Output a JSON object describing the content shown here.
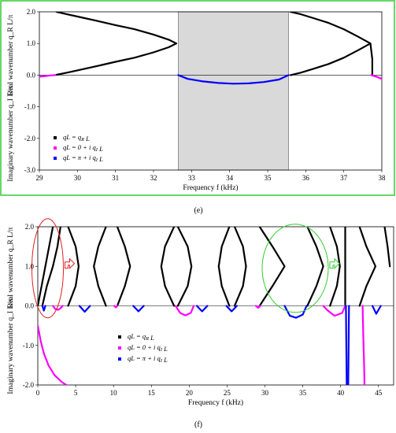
{
  "chart_data": [
    {
      "type": "scatter",
      "panel_label": "(e)",
      "xlabel": "Frequency  f (kHz)",
      "ylabel_upper": "Real wavenumber  q_R L/π",
      "ylabel_lower": "Imaginary wavenumber  q_I L/π",
      "xlim": [
        29,
        38
      ],
      "ylim": [
        -3.0,
        2.0
      ],
      "xticks": [
        "29",
        "30",
        "31",
        "32",
        "33",
        "34",
        "35",
        "36",
        "37",
        "38"
      ],
      "yticks": [
        "2.0",
        "1.0",
        "0.0",
        "-1.0",
        "-2.0",
        "-3.0"
      ],
      "bandgap": [
        32.65,
        35.55
      ],
      "frame_color": "#33cc33",
      "legend": [
        "qL = q_R L",
        "qL = 0 + i q_I L",
        "qL = π + i q_I L"
      ],
      "series": [
        {
          "color": "#000000",
          "points": [
            [
              29.45,
              2.0
            ],
            [
              29.7,
              1.93
            ],
            [
              30.0,
              1.85
            ],
            [
              30.5,
              1.72
            ],
            [
              31.0,
              1.58
            ],
            [
              31.5,
              1.45
            ],
            [
              32.0,
              1.28
            ],
            [
              32.4,
              1.12
            ],
            [
              32.6,
              1.0
            ],
            [
              32.4,
              0.88
            ],
            [
              32.0,
              0.72
            ],
            [
              31.5,
              0.55
            ],
            [
              31.0,
              0.42
            ],
            [
              30.5,
              0.28
            ],
            [
              30.0,
              0.15
            ],
            [
              29.7,
              0.07
            ],
            [
              29.45,
              0.01
            ]
          ]
        },
        {
          "color": "#000000",
          "points": [
            [
              35.6,
              2.0
            ],
            [
              35.85,
              1.93
            ],
            [
              36.2,
              1.8
            ],
            [
              36.6,
              1.65
            ],
            [
              37.0,
              1.45
            ],
            [
              37.4,
              1.2
            ],
            [
              37.7,
              1.0
            ],
            [
              37.75,
              0.5
            ],
            [
              37.75,
              0.0
            ]
          ]
        },
        {
          "color": "#000000",
          "points": [
            [
              35.6,
              0.0
            ],
            [
              35.85,
              0.07
            ],
            [
              36.2,
              0.2
            ],
            [
              36.6,
              0.35
            ],
            [
              37.0,
              0.55
            ],
            [
              37.4,
              0.8
            ],
            [
              37.7,
              1.0
            ]
          ]
        },
        {
          "color": "#ff00ff",
          "points": [
            [
              29.0,
              -0.05
            ],
            [
              29.15,
              -0.03
            ],
            [
              29.3,
              -0.01
            ],
            [
              29.42,
              0.0
            ]
          ]
        },
        {
          "color": "#ff00ff",
          "points": [
            [
              37.72,
              0.0
            ],
            [
              37.8,
              -0.03
            ],
            [
              37.9,
              -0.07
            ],
            [
              38.0,
              -0.12
            ]
          ]
        },
        {
          "color": "#0000ff",
          "points": [
            [
              32.65,
              0.0
            ],
            [
              32.9,
              -0.12
            ],
            [
              33.3,
              -0.2
            ],
            [
              33.7,
              -0.25
            ],
            [
              34.1,
              -0.27
            ],
            [
              34.5,
              -0.26
            ],
            [
              34.9,
              -0.22
            ],
            [
              35.3,
              -0.14
            ],
            [
              35.55,
              0.0
            ]
          ]
        }
      ]
    },
    {
      "type": "scatter",
      "panel_label": "(f)",
      "xlabel": "Frequency  f (kHz)",
      "ylabel_upper": "Real wavenumber  q_R L/π",
      "ylabel_lower": "Imaginary wavenumber  q_I L/π",
      "xlim": [
        0,
        47
      ],
      "ylim": [
        -2.0,
        2.0
      ],
      "xticks": [
        "0",
        "5",
        "10",
        "15",
        "20",
        "25",
        "30",
        "35",
        "40",
        "45"
      ],
      "yticks": [
        "2.0",
        "1.0",
        "0.0",
        "-1.0",
        "-2.0"
      ],
      "legend": [
        "qL = q_R L",
        "qL = 0 + i q_I L",
        "qL = π + i q_I L"
      ],
      "annotations": {
        "red_ellipse_center": [
          1.3,
          0.95
        ],
        "green_ellipse_center": [
          34.0,
          0.95
        ]
      },
      "series": [
        {
          "color": "#000000",
          "points": [
            [
              0.0,
              0.0
            ],
            [
              0.5,
              0.5
            ],
            [
              1.0,
              1.0
            ],
            [
              1.5,
              1.5
            ],
            [
              2.0,
              2.0
            ]
          ]
        },
        {
          "color": "#000000",
          "points": [
            [
              0.6,
              0.0
            ],
            [
              1.2,
              0.5
            ],
            [
              2.0,
              1.0
            ],
            [
              2.6,
              1.5
            ],
            [
              3.0,
              2.0
            ]
          ]
        },
        {
          "color": "#000000",
          "points": [
            [
              4.0,
              2.0
            ],
            [
              5.0,
              1.5
            ],
            [
              5.4,
              1.0
            ],
            [
              5.0,
              0.5
            ],
            [
              4.0,
              0.0
            ]
          ]
        },
        {
          "color": "#000000",
          "points": [
            [
              9.0,
              2.0
            ],
            [
              8.0,
              1.5
            ],
            [
              7.4,
              1.0
            ],
            [
              8.0,
              0.5
            ],
            [
              9.0,
              0.0
            ]
          ]
        },
        {
          "color": "#000000",
          "points": [
            [
              10.5,
              0.0
            ],
            [
              11.5,
              0.5
            ],
            [
              12.2,
              1.0
            ],
            [
              11.5,
              1.5
            ],
            [
              10.5,
              2.0
            ]
          ]
        },
        {
          "color": "#000000",
          "points": [
            [
              18.0,
              2.0
            ],
            [
              16.8,
              1.5
            ],
            [
              16.3,
              1.0
            ],
            [
              16.8,
              0.5
            ],
            [
              18.0,
              0.0
            ]
          ]
        },
        {
          "color": "#000000",
          "points": [
            [
              18.5,
              2.0
            ],
            [
              19.8,
              1.5
            ],
            [
              20.3,
              1.0
            ],
            [
              19.8,
              0.5
            ],
            [
              18.5,
              0.0
            ]
          ]
        },
        {
          "color": "#000000",
          "points": [
            [
              25.3,
              2.0
            ],
            [
              24.3,
              1.5
            ],
            [
              23.9,
              1.0
            ],
            [
              24.3,
              0.5
            ],
            [
              25.3,
              0.0
            ]
          ]
        },
        {
          "color": "#000000",
          "points": [
            [
              26.0,
              2.0
            ],
            [
              27.1,
              1.5
            ],
            [
              27.5,
              1.0
            ],
            [
              27.1,
              0.5
            ],
            [
              26.0,
              0.0
            ]
          ]
        },
        {
          "color": "#000000",
          "points": [
            [
              29.3,
              2.0
            ],
            [
              31.0,
              1.5
            ],
            [
              32.6,
              1.0
            ],
            [
              31.0,
              0.5
            ],
            [
              29.3,
              0.0
            ]
          ]
        },
        {
          "color": "#000000",
          "points": [
            [
              35.6,
              2.0
            ],
            [
              36.8,
              1.5
            ],
            [
              37.7,
              1.0
            ],
            [
              36.8,
              0.5
            ],
            [
              35.6,
              0.0
            ]
          ]
        },
        {
          "color": "#000000",
          "points": [
            [
              38.6,
              2.0
            ],
            [
              39.5,
              1.5
            ],
            [
              39.9,
              1.0
            ],
            [
              39.5,
              0.5
            ],
            [
              38.6,
              0.0
            ]
          ]
        },
        {
          "color": "#000000",
          "points": [
            [
              40.6,
              2.0
            ],
            [
              40.6,
              0.0
            ]
          ]
        },
        {
          "color": "#000000",
          "points": [
            [
              42.5,
              2.0
            ],
            [
              43.4,
              1.5
            ],
            [
              44.6,
              1.0
            ],
            [
              43.4,
              0.5
            ],
            [
              42.5,
              0.0
            ]
          ]
        },
        {
          "color": "#000000",
          "points": [
            [
              45.8,
              2.0
            ],
            [
              46.2,
              1.5
            ],
            [
              46.5,
              1.0
            ]
          ]
        },
        {
          "color": "#ff00ff",
          "points": [
            [
              0.0,
              -0.5
            ],
            [
              0.4,
              -0.9
            ],
            [
              0.8,
              -1.2
            ],
            [
              1.4,
              -1.5
            ],
            [
              2.2,
              -1.75
            ],
            [
              3.2,
              -1.93
            ],
            [
              3.8,
              -2.0
            ]
          ]
        },
        {
          "color": "#ff00ff",
          "points": [
            [
              2.0,
              0.0
            ],
            [
              2.3,
              -0.08
            ],
            [
              2.7,
              -0.1
            ],
            [
              3.0,
              -0.06
            ],
            [
              3.3,
              0.0
            ]
          ]
        },
        {
          "color": "#ff00ff",
          "points": [
            [
              10.1,
              0.0
            ],
            [
              10.3,
              -0.04
            ],
            [
              10.5,
              0.0
            ]
          ]
        },
        {
          "color": "#ff00ff",
          "points": [
            [
              18.2,
              0.0
            ],
            [
              18.8,
              -0.18
            ],
            [
              19.5,
              -0.24
            ],
            [
              20.2,
              -0.18
            ],
            [
              20.6,
              0.0
            ]
          ]
        },
        {
          "color": "#ff00ff",
          "points": [
            [
              28.8,
              0.0
            ],
            [
              29.1,
              -0.05
            ],
            [
              29.4,
              0.0
            ]
          ]
        },
        {
          "color": "#ff00ff",
          "points": [
            [
              37.7,
              0.0
            ],
            [
              38.3,
              -0.12
            ],
            [
              39.2,
              -0.25
            ],
            [
              40.2,
              -0.18
            ],
            [
              40.6,
              0.0
            ]
          ]
        },
        {
          "color": "#ff00ff",
          "points": [
            [
              42.9,
              0.0
            ],
            [
              43.0,
              -0.8
            ],
            [
              43.1,
              -1.5
            ],
            [
              43.15,
              -2.0
            ]
          ]
        },
        {
          "color": "#0000ff",
          "points": [
            [
              0.6,
              0.0
            ],
            [
              0.8,
              -0.12
            ],
            [
              1.0,
              0.0
            ]
          ]
        },
        {
          "color": "#0000ff",
          "points": [
            [
              5.5,
              0.0
            ],
            [
              6.2,
              -0.15
            ],
            [
              6.9,
              0.0
            ]
          ]
        },
        {
          "color": "#0000ff",
          "points": [
            [
              12.6,
              0.0
            ],
            [
              13.3,
              -0.14
            ],
            [
              14.0,
              0.0
            ]
          ]
        },
        {
          "color": "#0000ff",
          "points": [
            [
              21.0,
              0.0
            ],
            [
              21.7,
              -0.14
            ],
            [
              22.4,
              0.0
            ]
          ]
        },
        {
          "color": "#0000ff",
          "points": [
            [
              24.9,
              0.0
            ],
            [
              25.6,
              -0.14
            ],
            [
              26.3,
              0.0
            ]
          ]
        },
        {
          "color": "#0000ff",
          "points": [
            [
              32.6,
              0.0
            ],
            [
              33.3,
              -0.25
            ],
            [
              34.1,
              -0.3
            ],
            [
              35.0,
              -0.22
            ],
            [
              35.5,
              0.0
            ]
          ]
        },
        {
          "color": "#0000ff",
          "points": [
            [
              40.7,
              0.0
            ],
            [
              40.75,
              -1.0
            ],
            [
              40.8,
              -2.0
            ]
          ]
        },
        {
          "color": "#0000ff",
          "points": [
            [
              41.0,
              -2.0
            ],
            [
              41.05,
              -1.0
            ],
            [
              41.1,
              0.0
            ]
          ]
        },
        {
          "color": "#0000ff",
          "points": [
            [
              44.2,
              0.0
            ],
            [
              44.7,
              -0.2
            ],
            [
              45.3,
              0.0
            ]
          ]
        }
      ]
    }
  ]
}
